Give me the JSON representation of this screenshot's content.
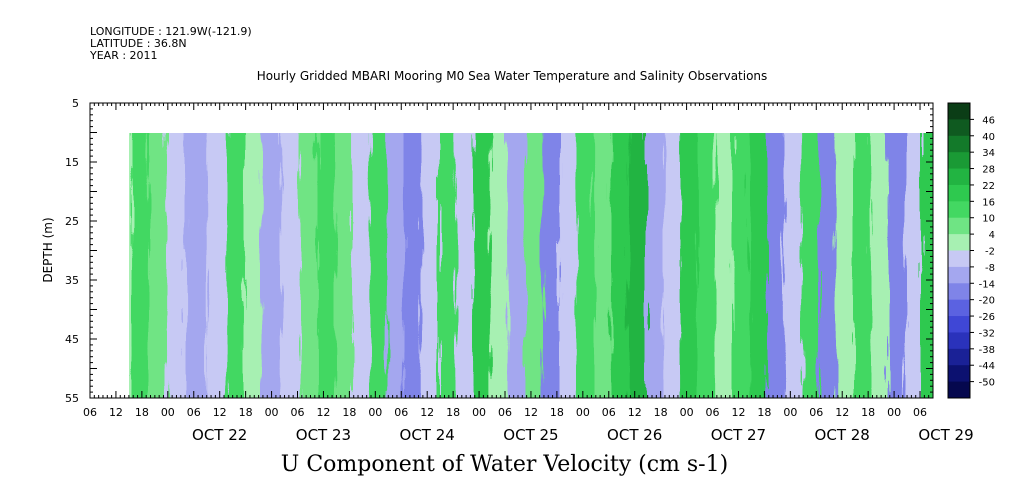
{
  "header": {
    "longitude": "LONGITUDE : 121.9W(-121.9)",
    "latitude": "LATITUDE : 36.8N",
    "year": "YEAR : 2011"
  },
  "chart_data": {
    "type": "heatmap",
    "title": "Hourly Gridded MBARI Mooring M0 Sea Water Temperature and Salinity Observations",
    "xlabel": "U Component of Water Velocity (cm s-1)",
    "ylabel": "DEPTH (m)",
    "ylim": [
      55,
      5
    ],
    "yticks": [
      5,
      15,
      25,
      35,
      45,
      55
    ],
    "data_depth_range": [
      10,
      55
    ],
    "x_hour_ticks": [
      "06",
      "12",
      "18",
      "00",
      "06",
      "12",
      "18",
      "00",
      "06",
      "12",
      "18",
      "00",
      "06",
      "12",
      "18",
      "00",
      "06",
      "12",
      "18",
      "00",
      "06",
      "12",
      "18",
      "00",
      "06",
      "12",
      "18",
      "00",
      "06",
      "12",
      "18",
      "00",
      "06"
    ],
    "x_date_labels": [
      "OCT 22",
      "OCT 23",
      "OCT 24",
      "OCT 25",
      "OCT 26",
      "OCT 27",
      "OCT 28",
      "OCT 29"
    ],
    "x_start": "OCT 21 06:00",
    "x_end": "OCT 29 09:00",
    "data_start": "OCT 21 14:00",
    "colorbar": {
      "levels": [
        "46",
        "40",
        "34",
        "28",
        "22",
        "16",
        "10",
        "4",
        "-2",
        "-8",
        "-14",
        "-20",
        "-26",
        "-32",
        "-38",
        "-44",
        "-50"
      ],
      "colors": [
        "#0b3d16",
        "#0f5a20",
        "#137a2a",
        "#1a9a35",
        "#22b442",
        "#2ec94f",
        "#43d862",
        "#6fe484",
        "#a7f0b2",
        "#c7c9f4",
        "#a4a7ef",
        "#7f84e8",
        "#5b62e1",
        "#3f47d6",
        "#2a32bb",
        "#1a2196",
        "#0c1170",
        "#05084e"
      ]
    },
    "bands": [
      {
        "x": "OCT 21 15:00",
        "u": -2
      },
      {
        "x": "OCT 21 19:00",
        "u": 10
      },
      {
        "x": "OCT 21 23:00",
        "u": 4
      },
      {
        "x": "OCT 22 03:00",
        "u": -8
      },
      {
        "x": "OCT 22 08:00",
        "u": -14
      },
      {
        "x": "OCT 22 13:00",
        "u": -8
      },
      {
        "x": "OCT 22 17:00",
        "u": 10
      },
      {
        "x": "OCT 22 21:00",
        "u": -2
      },
      {
        "x": "OCT 23 01:00",
        "u": -14
      },
      {
        "x": "OCT 23 06:00",
        "u": -8
      },
      {
        "x": "OCT 23 10:00",
        "u": 4
      },
      {
        "x": "OCT 23 14:00",
        "u": 10
      },
      {
        "x": "OCT 23 18:00",
        "u": 4
      },
      {
        "x": "OCT 23 22:00",
        "u": -8
      },
      {
        "x": "OCT 24 02:00",
        "u": 10
      },
      {
        "x": "OCT 24 06:00",
        "u": -14
      },
      {
        "x": "OCT 24 10:00",
        "u": -20
      },
      {
        "x": "OCT 24 14:00",
        "u": -8
      },
      {
        "x": "OCT 24 18:00",
        "u": 10
      },
      {
        "x": "OCT 24 22:00",
        "u": -8
      },
      {
        "x": "OCT 25 02:00",
        "u": 16
      },
      {
        "x": "OCT 25 06:00",
        "u": -2
      },
      {
        "x": "OCT 25 10:00",
        "u": -14
      },
      {
        "x": "OCT 25 14:00",
        "u": 4
      },
      {
        "x": "OCT 25 18:00",
        "u": -20
      },
      {
        "x": "OCT 25 22:00",
        "u": -8
      },
      {
        "x": "OCT 26 02:00",
        "u": 10
      },
      {
        "x": "OCT 26 06:00",
        "u": 4
      },
      {
        "x": "OCT 26 10:00",
        "u": 16
      },
      {
        "x": "OCT 26 14:00",
        "u": 22
      },
      {
        "x": "OCT 26 18:00",
        "u": -14
      },
      {
        "x": "OCT 26 22:00",
        "u": -8
      },
      {
        "x": "OCT 27 02:00",
        "u": 16
      },
      {
        "x": "OCT 27 06:00",
        "u": 10
      },
      {
        "x": "OCT 27 10:00",
        "u": -2
      },
      {
        "x": "OCT 27 14:00",
        "u": 10
      },
      {
        "x": "OCT 27 18:00",
        "u": 16
      },
      {
        "x": "OCT 27 22:00",
        "u": -20
      },
      {
        "x": "OCT 28 02:00",
        "u": -8
      },
      {
        "x": "OCT 28 06:00",
        "u": 10
      },
      {
        "x": "OCT 28 10:00",
        "u": -20
      },
      {
        "x": "OCT 28 14:00",
        "u": -2
      },
      {
        "x": "OCT 28 18:00",
        "u": 10
      },
      {
        "x": "OCT 28 22:00",
        "u": -2
      },
      {
        "x": "OCT 29 02:00",
        "u": -20
      },
      {
        "x": "OCT 29 06:00",
        "u": -8
      },
      {
        "x": "OCT 29 09:00",
        "u": 16
      }
    ]
  }
}
